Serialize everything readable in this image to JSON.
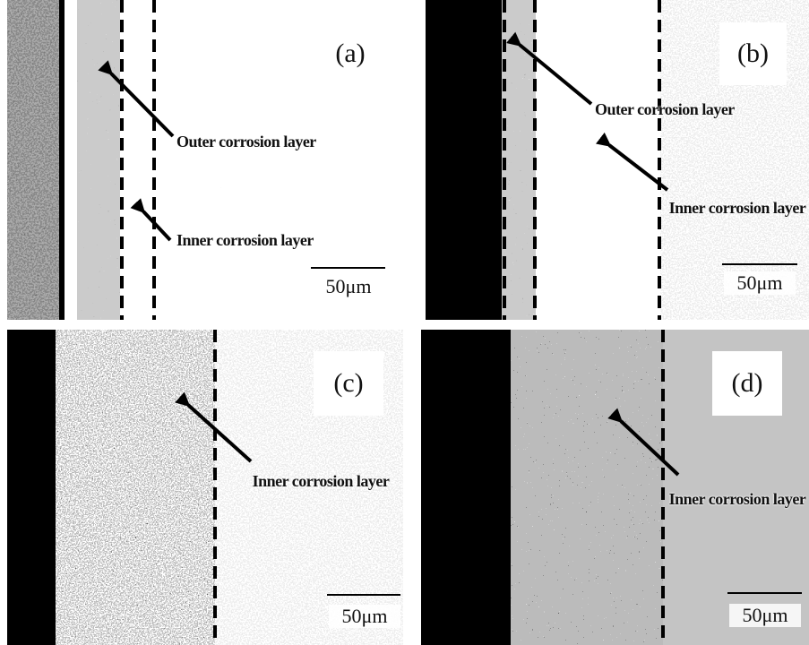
{
  "panels": [
    {
      "label": "(a)",
      "annotations": [
        "Outer corrosion layer",
        "Inner corrosion layer"
      ],
      "scale_bar": "50μm"
    },
    {
      "label": "(b)",
      "annotations": [
        "Outer corrosion layer",
        "Inner corrosion layer"
      ],
      "scale_bar": "50μm"
    },
    {
      "label": "(c)",
      "annotations": [
        "Inner corrosion layer"
      ],
      "scale_bar": "50μm"
    },
    {
      "label": "(d)",
      "annotations": [
        "Inner corrosion layer"
      ],
      "scale_bar": "50μm"
    }
  ]
}
